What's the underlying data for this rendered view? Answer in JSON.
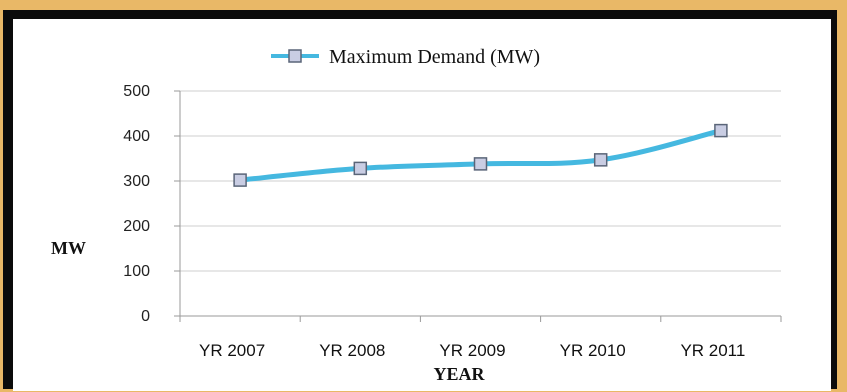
{
  "chart_data": {
    "type": "line",
    "title": "",
    "xlabel": "YEAR",
    "ylabel": "MW",
    "categories": [
      "YR 2007",
      "YR 2008",
      "YR 2009",
      "YR 2010",
      "YR 2011"
    ],
    "series": [
      {
        "name": "Maximum Demand (MW)",
        "values": [
          302,
          328,
          338,
          347,
          412
        ]
      }
    ],
    "ylim": [
      0,
      500
    ],
    "yticks": [
      0,
      100,
      200,
      300,
      400,
      500
    ],
    "grid": true,
    "legend_position": "top-center",
    "colors": {
      "line": "#45b8e0",
      "marker_fill": "#c9cde3",
      "marker_stroke": "#5a6578",
      "grid": "#cfcfcf",
      "border": "#e9b867",
      "frame": "#0b0b0b"
    }
  }
}
